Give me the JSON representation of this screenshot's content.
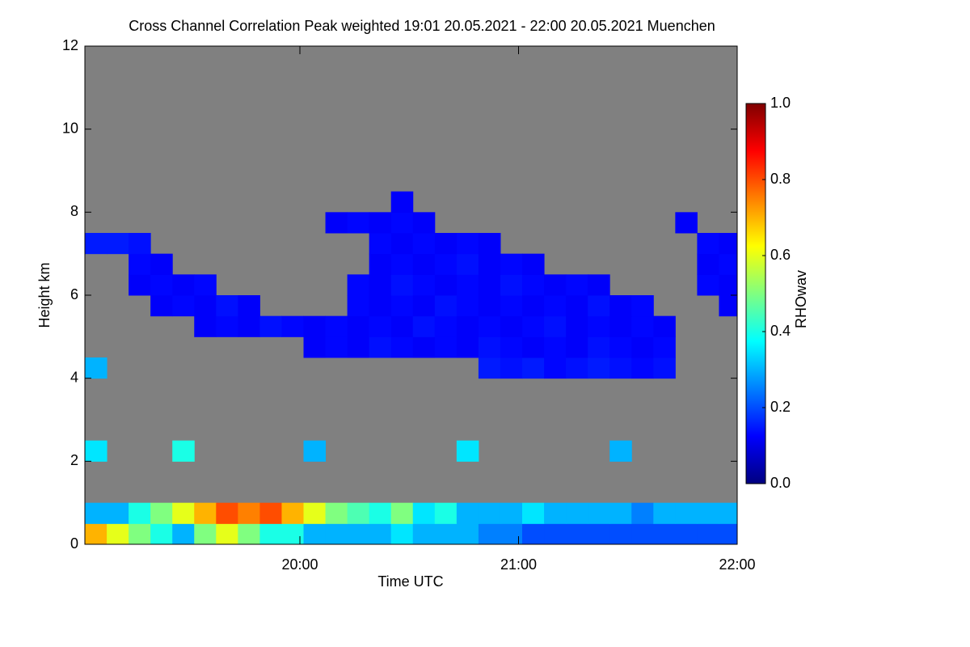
{
  "chart_data": {
    "type": "heatmap",
    "title": "Cross Channel Correlation Peak weighted   19:01 20.05.2021 - 22:00 20.05.2021 Muenchen",
    "xlabel": "Time UTC",
    "ylabel": "Height km",
    "colorbar_label": "RHOwav",
    "xlim": [
      1141,
      1320
    ],
    "xticks": [
      {
        "value": 1200,
        "label": "20:00"
      },
      {
        "value": 1260,
        "label": "21:00"
      },
      {
        "value": 1320,
        "label": "22:00"
      }
    ],
    "ylim": [
      0,
      12
    ],
    "yticks": [
      0,
      2,
      4,
      6,
      8,
      10,
      12
    ],
    "zlim": [
      0,
      1
    ],
    "zticks": [
      {
        "value": 0,
        "label": "0.0"
      },
      {
        "value": 0.2,
        "label": "0.2"
      },
      {
        "value": 0.4,
        "label": "0.4"
      },
      {
        "value": 0.6,
        "label": "0.6"
      },
      {
        "value": 0.8,
        "label": "0.8"
      },
      {
        "value": 1,
        "label": "1.0"
      }
    ],
    "colorscale": [
      "#00007f",
      "#0000ff",
      "#0080ff",
      "#00ffff",
      "#80ff80",
      "#ffff00",
      "#ff8000",
      "#ff0000",
      "#7f0000"
    ],
    "background_color": "#808080",
    "x": [
      1144,
      1150,
      1156,
      1162,
      1168,
      1174,
      1180,
      1186,
      1192,
      1198,
      1204,
      1210,
      1216,
      1222,
      1228,
      1234,
      1240,
      1246,
      1252,
      1258,
      1264,
      1270,
      1276,
      1282,
      1288,
      1294,
      1300,
      1306,
      1312,
      1318
    ],
    "y": [
      0.25,
      0.75,
      1.25,
      1.75,
      2.25,
      2.75,
      3.25,
      3.75,
      4.25,
      4.75,
      5.25,
      5.75,
      6.25,
      6.75,
      7.25,
      7.75,
      8.25,
      8.75,
      9.25,
      9.75,
      10.25,
      10.75,
      11.25,
      11.75
    ],
    "z": [
      [
        0.7,
        0.6,
        0.5,
        0.4,
        0.3,
        0.5,
        0.6,
        0.5,
        0.4,
        0.4,
        0.3,
        0.3,
        0.3,
        0.3,
        0.35,
        0.3,
        0.3,
        0.3,
        0.25,
        0.25,
        0.2,
        0.2,
        0.2,
        0.2,
        0.2,
        0.2,
        0.2,
        0.2,
        0.2,
        0.2
      ],
      [
        0.3,
        0.3,
        0.4,
        0.5,
        0.6,
        0.7,
        0.8,
        0.75,
        0.8,
        0.7,
        0.6,
        0.5,
        0.45,
        0.4,
        0.5,
        0.35,
        0.4,
        0.3,
        0.3,
        0.3,
        0.35,
        0.3,
        0.3,
        0.3,
        0.3,
        0.25,
        0.3,
        0.3,
        0.3,
        0.3
      ],
      [
        null,
        null,
        null,
        null,
        null,
        null,
        null,
        null,
        null,
        null,
        null,
        null,
        null,
        null,
        null,
        null,
        null,
        null,
        null,
        null,
        null,
        null,
        null,
        null,
        null,
        null,
        null,
        null,
        null,
        null
      ],
      [
        null,
        null,
        null,
        null,
        null,
        null,
        null,
        null,
        null,
        null,
        null,
        null,
        null,
        null,
        null,
        null,
        null,
        null,
        null,
        null,
        null,
        null,
        null,
        null,
        null,
        null,
        null,
        null,
        null,
        null
      ],
      [
        0.35,
        null,
        null,
        null,
        0.4,
        null,
        null,
        null,
        null,
        null,
        0.3,
        null,
        null,
        null,
        null,
        null,
        null,
        0.35,
        null,
        null,
        null,
        null,
        null,
        null,
        0.3,
        null,
        null,
        null,
        null,
        null
      ],
      [
        null,
        null,
        null,
        null,
        null,
        null,
        null,
        null,
        null,
        null,
        null,
        null,
        null,
        null,
        null,
        null,
        null,
        null,
        null,
        null,
        null,
        null,
        null,
        null,
        null,
        null,
        null,
        null,
        null,
        null
      ],
      [
        null,
        null,
        null,
        null,
        null,
        null,
        null,
        null,
        null,
        null,
        null,
        null,
        null,
        null,
        null,
        null,
        null,
        null,
        null,
        null,
        null,
        null,
        null,
        null,
        null,
        null,
        null,
        null,
        null,
        null
      ],
      [
        null,
        null,
        null,
        null,
        null,
        null,
        null,
        null,
        null,
        null,
        null,
        null,
        null,
        null,
        null,
        null,
        null,
        null,
        null,
        null,
        null,
        null,
        null,
        null,
        null,
        null,
        null,
        null,
        null,
        null
      ],
      [
        0.3,
        null,
        null,
        null,
        null,
        null,
        null,
        null,
        null,
        null,
        null,
        null,
        null,
        null,
        null,
        null,
        null,
        null,
        0.15,
        0.14,
        0.15,
        0.13,
        0.14,
        0.15,
        0.14,
        0.13,
        0.14,
        null,
        null,
        null
      ],
      [
        null,
        null,
        null,
        null,
        null,
        null,
        null,
        null,
        null,
        null,
        0.12,
        0.13,
        0.12,
        0.14,
        0.13,
        0.12,
        0.13,
        0.12,
        0.14,
        0.13,
        0.12,
        0.13,
        0.12,
        0.14,
        0.13,
        0.12,
        0.13,
        null,
        null,
        null
      ],
      [
        null,
        null,
        null,
        null,
        null,
        0.12,
        0.13,
        0.12,
        0.14,
        0.13,
        0.12,
        0.13,
        0.12,
        0.13,
        0.12,
        0.14,
        0.13,
        0.12,
        0.13,
        0.12,
        0.13,
        0.14,
        0.12,
        0.13,
        0.12,
        0.13,
        0.12,
        null,
        null,
        null
      ],
      [
        null,
        null,
        null,
        0.12,
        0.13,
        0.12,
        0.14,
        0.12,
        null,
        null,
        null,
        null,
        0.13,
        0.12,
        0.13,
        0.12,
        0.14,
        0.13,
        0.12,
        0.13,
        0.12,
        0.13,
        0.12,
        0.14,
        0.12,
        0.13,
        null,
        null,
        null,
        0.12
      ],
      [
        null,
        null,
        0.12,
        0.13,
        0.12,
        0.13,
        null,
        null,
        null,
        null,
        null,
        null,
        0.13,
        0.12,
        0.14,
        0.13,
        0.12,
        0.13,
        0.12,
        0.14,
        0.13,
        0.12,
        0.13,
        0.12,
        null,
        null,
        null,
        null,
        0.13,
        0.12
      ],
      [
        null,
        null,
        0.13,
        0.12,
        null,
        null,
        null,
        null,
        null,
        null,
        null,
        null,
        null,
        0.12,
        0.13,
        0.12,
        0.13,
        0.14,
        0.12,
        0.13,
        0.12,
        null,
        null,
        null,
        null,
        null,
        null,
        null,
        0.12,
        0.13
      ],
      [
        0.15,
        0.15,
        0.14,
        null,
        null,
        null,
        null,
        null,
        null,
        null,
        null,
        null,
        null,
        0.13,
        0.12,
        0.13,
        0.12,
        0.13,
        0.12,
        null,
        null,
        null,
        null,
        null,
        null,
        null,
        null,
        null,
        0.13,
        0.12
      ],
      [
        null,
        null,
        null,
        null,
        null,
        null,
        null,
        null,
        null,
        null,
        null,
        0.12,
        0.13,
        0.12,
        0.13,
        0.12,
        null,
        null,
        null,
        null,
        null,
        null,
        null,
        null,
        null,
        null,
        null,
        0.12,
        null,
        null
      ],
      [
        null,
        null,
        null,
        null,
        null,
        null,
        null,
        null,
        null,
        null,
        null,
        null,
        null,
        null,
        0.12,
        null,
        null,
        null,
        null,
        null,
        null,
        null,
        null,
        null,
        null,
        null,
        null,
        null,
        null,
        null
      ],
      [
        null,
        null,
        null,
        null,
        null,
        null,
        null,
        null,
        null,
        null,
        null,
        null,
        null,
        null,
        null,
        null,
        null,
        null,
        null,
        null,
        null,
        null,
        null,
        null,
        null,
        null,
        null,
        null,
        null,
        null
      ],
      [
        null,
        null,
        null,
        null,
        null,
        null,
        null,
        null,
        null,
        null,
        null,
        null,
        null,
        null,
        null,
        null,
        null,
        null,
        null,
        null,
        null,
        null,
        null,
        null,
        null,
        null,
        null,
        null,
        null,
        null
      ],
      [
        null,
        null,
        null,
        null,
        null,
        null,
        null,
        null,
        null,
        null,
        null,
        null,
        null,
        null,
        null,
        null,
        null,
        null,
        null,
        null,
        null,
        null,
        null,
        null,
        null,
        null,
        null,
        null,
        null,
        null
      ],
      [
        null,
        null,
        null,
        null,
        null,
        null,
        null,
        null,
        null,
        null,
        null,
        null,
        null,
        null,
        null,
        null,
        null,
        null,
        null,
        null,
        null,
        null,
        null,
        null,
        null,
        null,
        null,
        null,
        null,
        null
      ],
      [
        null,
        null,
        null,
        null,
        null,
        null,
        null,
        null,
        null,
        null,
        null,
        null,
        null,
        null,
        null,
        null,
        null,
        null,
        null,
        null,
        null,
        null,
        null,
        null,
        null,
        null,
        null,
        null,
        null,
        null
      ],
      [
        null,
        null,
        null,
        null,
        null,
        null,
        null,
        null,
        null,
        null,
        null,
        null,
        null,
        null,
        null,
        null,
        null,
        null,
        null,
        null,
        null,
        null,
        null,
        null,
        null,
        null,
        null,
        null,
        null,
        null
      ],
      [
        null,
        null,
        null,
        null,
        null,
        null,
        null,
        null,
        null,
        null,
        null,
        null,
        null,
        null,
        null,
        null,
        null,
        null,
        null,
        null,
        null,
        null,
        null,
        null,
        null,
        null,
        null,
        null,
        null,
        null
      ]
    ]
  }
}
